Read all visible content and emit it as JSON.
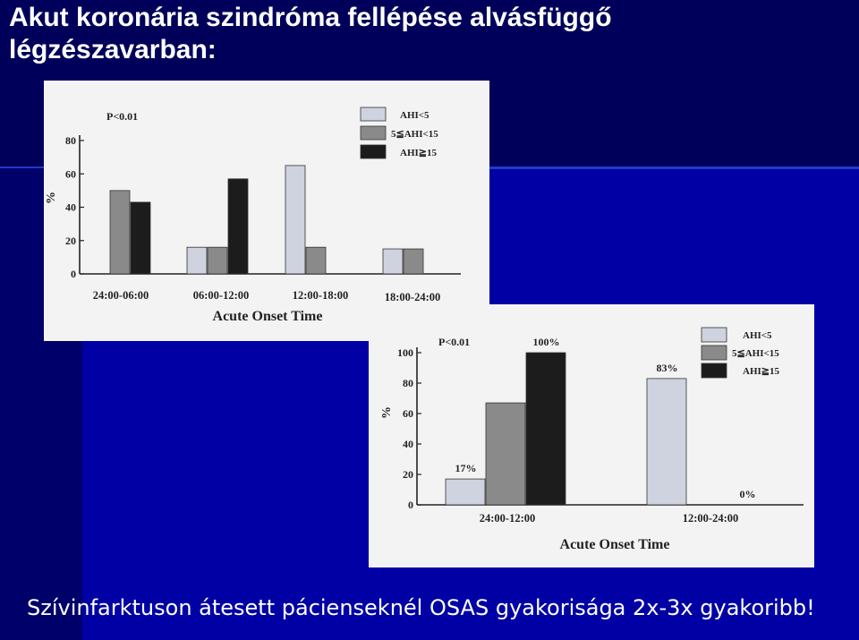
{
  "slide": {
    "title_line1": "Akut koronária szindróma fellépése alvásfüggő",
    "title_line2": "légzészavarban:",
    "caption": "Szívinfarktuson átesett pácienseknél OSAS gyakorisága 2x-3x gyakoribb!",
    "colors": {
      "background": "#0000a4",
      "text": "#ffffff"
    }
  },
  "chart_data": [
    {
      "type": "bar",
      "annotation": "P<0.01",
      "ylabel": "%",
      "xlabel": "Acute Onset Time",
      "ylim": [
        0,
        80
      ],
      "yticks": [
        "0",
        "20",
        "40",
        "60",
        "80"
      ],
      "categories": [
        "24:00-06:00",
        "06:00-12:00",
        "12:00-18:00",
        "18:00-24:00"
      ],
      "legend": [
        "AHI<5",
        "5≦AHI<15",
        "AHI≧15"
      ],
      "legend_position": "top-right",
      "series": [
        {
          "name": "AHI<5",
          "color": "#cfd3df",
          "values": [
            0,
            16,
            65,
            15
          ]
        },
        {
          "name": "5≦AHI<15",
          "color": "#8a8a8a",
          "values": [
            50,
            16,
            16,
            15
          ]
        },
        {
          "name": "AHI≧15",
          "color": "#1c1c1c",
          "values": [
            43,
            57,
            0,
            0
          ]
        }
      ]
    },
    {
      "type": "bar",
      "annotation": "P<0.01",
      "ylabel": "%",
      "xlabel": "Acute Onset Time",
      "ylim": [
        0,
        100
      ],
      "yticks": [
        "0",
        "20",
        "40",
        "60",
        "80",
        "100"
      ],
      "categories": [
        "24:00-12:00",
        "12:00-24:00"
      ],
      "legend": [
        "AHI<5",
        "5≦AHI<15",
        "AHI≧15"
      ],
      "legend_position": "top-right",
      "series": [
        {
          "name": "AHI<5",
          "color": "#cfd3df",
          "values": [
            17,
            83
          ],
          "labels": [
            "17%",
            "83%"
          ]
        },
        {
          "name": "5≦AHI<15",
          "color": "#8a8a8a",
          "values": [
            67,
            0
          ],
          "labels": [
            "",
            ""
          ]
        },
        {
          "name": "AHI≧15",
          "color": "#1c1c1c",
          "values": [
            100,
            0
          ],
          "labels": [
            "100%",
            "0%"
          ]
        }
      ]
    }
  ]
}
